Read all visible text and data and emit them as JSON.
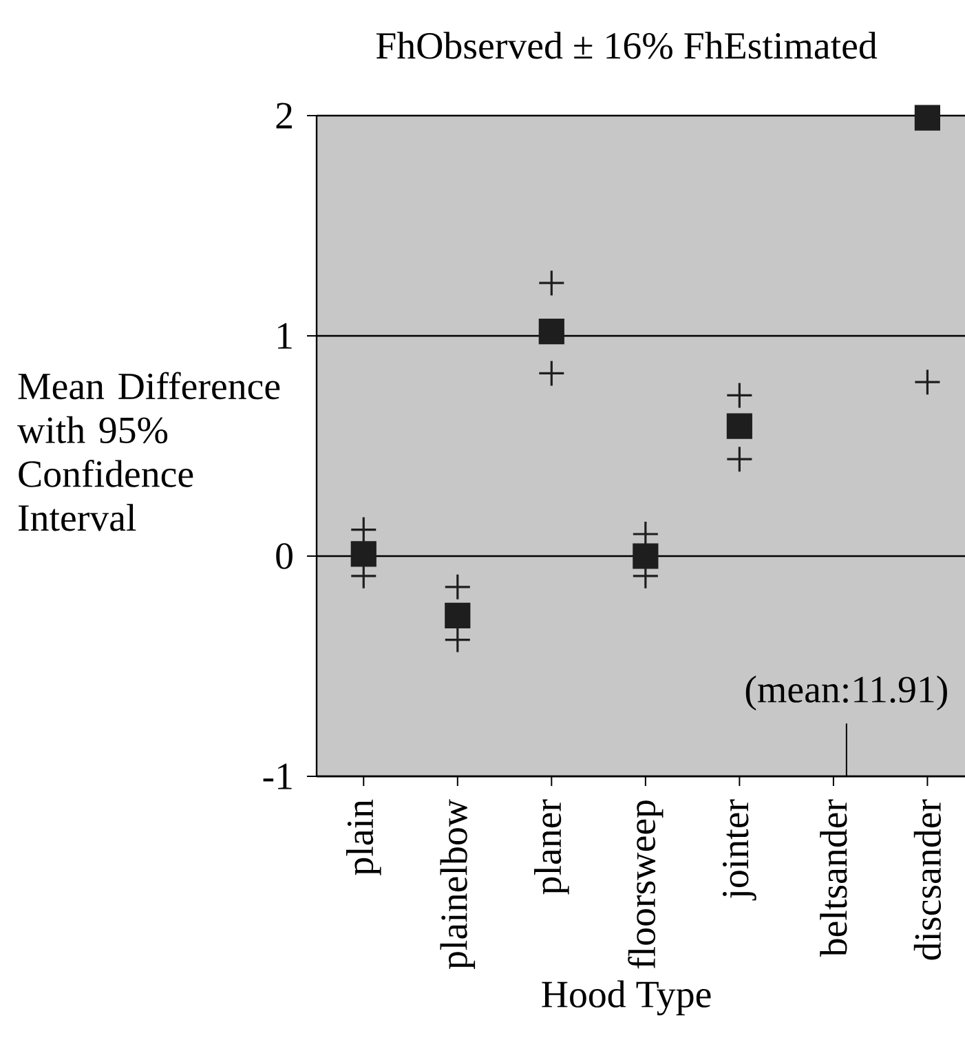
{
  "chart_data": {
    "type": "scatter",
    "title": "FhObserved ± 16% FhEstimated",
    "xlabel": "Hood Type",
    "ylabel": "Mean Difference with 95% Confidence Interval",
    "categories": [
      "plain",
      "plainelbow",
      "planer",
      "floorsweep",
      "jointer",
      "beltsander",
      "discsander"
    ],
    "series": [
      {
        "color": "#1e1e1e",
        "marker": "square",
        "values": [
          0.01,
          -0.27,
          1.02,
          0.0,
          0.59,
          null,
          1.99
        ]
      },
      {
        "color": "#1e1e1e",
        "marker": "cross",
        "values": [
          0.12,
          -0.14,
          1.24,
          0.1,
          0.73,
          null,
          null
        ]
      },
      {
        "color": "#1e1e1e",
        "marker": "cross",
        "values": [
          -0.09,
          -0.38,
          0.83,
          -0.09,
          0.44,
          null,
          0.79
        ]
      }
    ],
    "ylim": [
      -1,
      2
    ],
    "yticks": [
      -1,
      0,
      1,
      2
    ],
    "grid": "y",
    "annotations": [
      "(mean:11.91)"
    ]
  }
}
